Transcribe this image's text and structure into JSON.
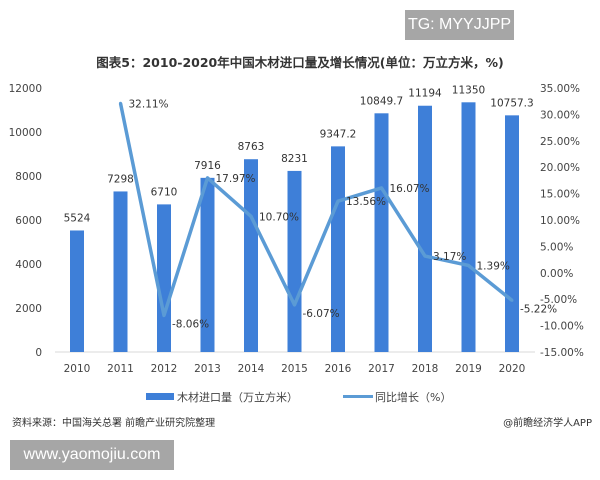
{
  "watermark_top": "TG: MYYJJPP",
  "watermark_bottom": "www.yaomojiu.com",
  "source": "资料来源：中国海关总署 前瞻产业研究院整理",
  "credit": "@前瞻经济学人APP",
  "chart_data": {
    "type": "bar+line",
    "title": "图表5：2010-2020年中国木材进口量及增长情况(单位：万立方米，%)",
    "categories": [
      "2010",
      "2011",
      "2012",
      "2013",
      "2014",
      "2015",
      "2016",
      "2017",
      "2018",
      "2019",
      "2020"
    ],
    "series": [
      {
        "name": "木材进口量（万立方米）",
        "type": "bar",
        "axis": "left",
        "color": "#3e7fd8",
        "values": [
          5524,
          7298,
          6710,
          7916,
          8763,
          8231,
          9347.2,
          10849.7,
          11194,
          11350,
          10757.3
        ],
        "labels": [
          "5524",
          "7298",
          "6710",
          "7916",
          "8763",
          "8231",
          "9347.2",
          "10849.7",
          "11194",
          "11350",
          "10757.3"
        ]
      },
      {
        "name": "同比增长（%）",
        "type": "line",
        "axis": "right",
        "color": "#5b9bd5",
        "values": [
          null,
          32.11,
          -8.06,
          17.97,
          10.7,
          -6.07,
          13.56,
          16.07,
          3.17,
          1.39,
          -5.22
        ],
        "labels": [
          "",
          "32.11%",
          "-8.06%",
          "17.97%",
          "10.70%",
          "-6.07%",
          "13.56%",
          "16.07%",
          "3.17%",
          "1.39%",
          "-5.22%"
        ]
      }
    ],
    "left_axis": {
      "ylim": [
        0,
        12000
      ],
      "ticks": [
        "0",
        "2000",
        "4000",
        "6000",
        "8000",
        "10000",
        "12000"
      ]
    },
    "right_axis": {
      "ylim": [
        -15,
        35
      ],
      "ticks": [
        "-15.00%",
        "-10.00%",
        "-5.00%",
        "0.00%",
        "5.00%",
        "10.00%",
        "15.00%",
        "20.00%",
        "25.00%",
        "30.00%",
        "35.00%"
      ]
    },
    "grid": false,
    "legend": "bottom"
  }
}
